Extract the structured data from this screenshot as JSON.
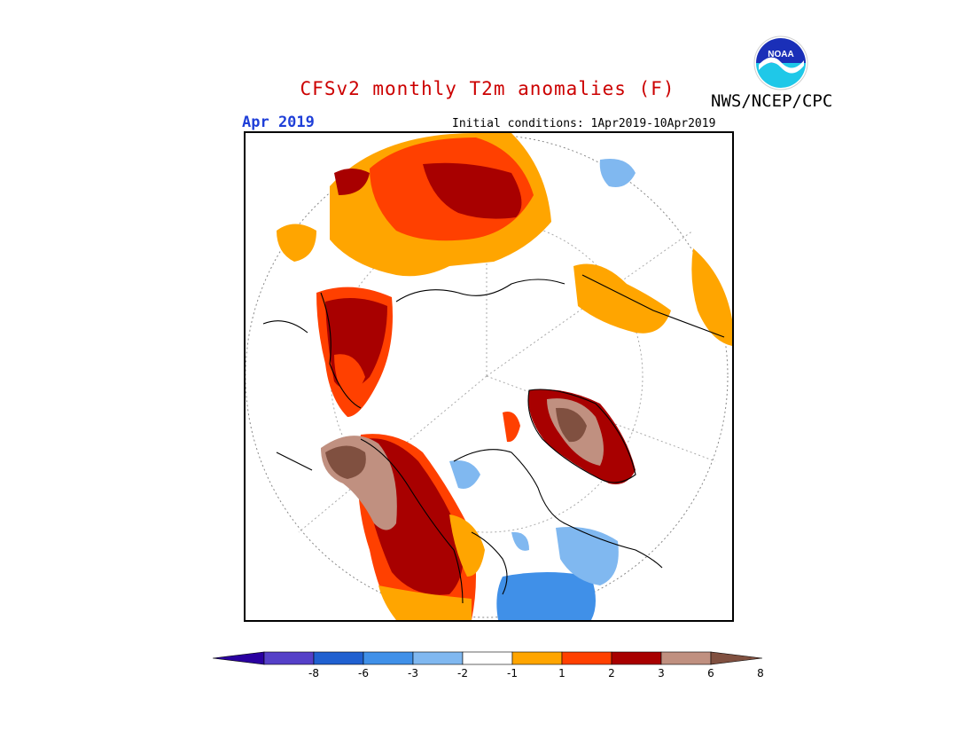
{
  "header": {
    "title": "CFSv2 monthly T2m anomalies (F)",
    "agency": "NWS/NCEP/CPC",
    "period": "Apr 2019",
    "initial_conditions": "Initial conditions: 1Apr2019-10Apr2019"
  },
  "logo": {
    "text": "NOAA"
  },
  "colors": {
    "title": "#cc0000",
    "period": "#1f3fd8",
    "levels": [
      "#2a00a0",
      "#5540c8",
      "#2060d0",
      "#4090e8",
      "#80b8f0",
      "#ffffff",
      "#ffa500",
      "#ff4000",
      "#a80000",
      "#c09080",
      "#805040"
    ]
  },
  "colorbar": {
    "labels": [
      "-8",
      "-6",
      "-3",
      "-2",
      "-1",
      "1",
      "2",
      "3",
      "6",
      "8"
    ]
  }
}
